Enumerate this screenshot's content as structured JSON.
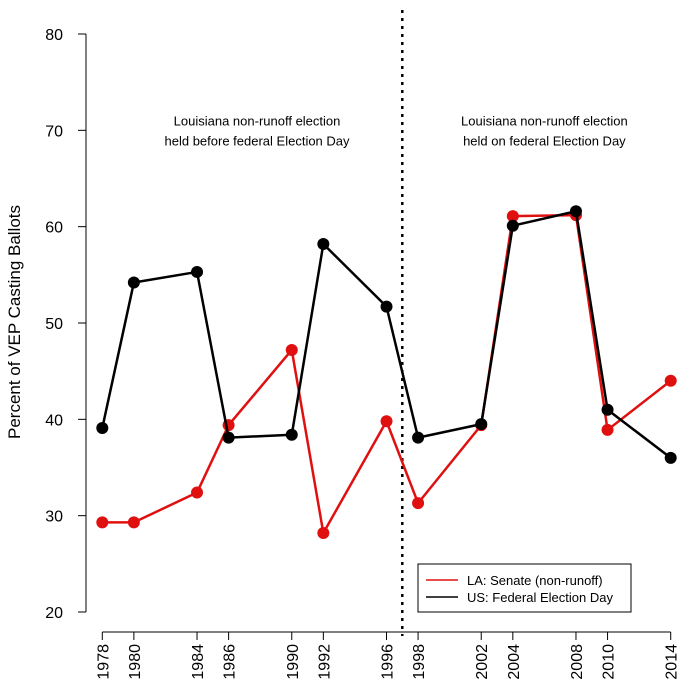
{
  "chart_data": {
    "type": "line",
    "ylabel": "Percent of VEP Casting Ballots",
    "xlabel": "",
    "ylim": [
      20,
      80
    ],
    "y_ticks": [
      20,
      30,
      40,
      50,
      60,
      70,
      80
    ],
    "x_ticks": [
      1978,
      1980,
      1984,
      1986,
      1990,
      1992,
      1996,
      1998,
      2002,
      2004,
      2008,
      2010,
      2014
    ],
    "divider_x": 1997,
    "annotations": [
      {
        "lines": [
          "Louisiana non-runoff election",
          "held before federal Election Day"
        ],
        "x": 1987.8,
        "y": 71
      },
      {
        "lines": [
          "Louisiana non-runoff election",
          "held on federal Election Day"
        ],
        "x": 2006,
        "y": 71
      }
    ],
    "series": [
      {
        "name": "LA: Senate (non-runoff)",
        "color": "#e01010",
        "x": [
          1978,
          1980,
          1984,
          1986,
          1990,
          1992,
          1996,
          1998,
          2002,
          2004,
          2008,
          2010,
          2014
        ],
        "values": [
          29.3,
          29.3,
          32.4,
          39.4,
          47.2,
          28.2,
          39.8,
          31.3,
          39.4,
          61.1,
          61.2,
          38.9,
          44.0
        ]
      },
      {
        "name": "US: Federal Election Day",
        "color": "#000000",
        "x": [
          1978,
          1980,
          1984,
          1986,
          1990,
          1992,
          1996,
          1998,
          2002,
          2004,
          2008,
          2010,
          2014
        ],
        "values": [
          39.1,
          54.2,
          55.3,
          38.1,
          38.4,
          58.2,
          51.7,
          38.1,
          39.5,
          60.1,
          61.6,
          41.0,
          36.0
        ]
      }
    ],
    "legend": {
      "position": "bottom-right"
    }
  }
}
